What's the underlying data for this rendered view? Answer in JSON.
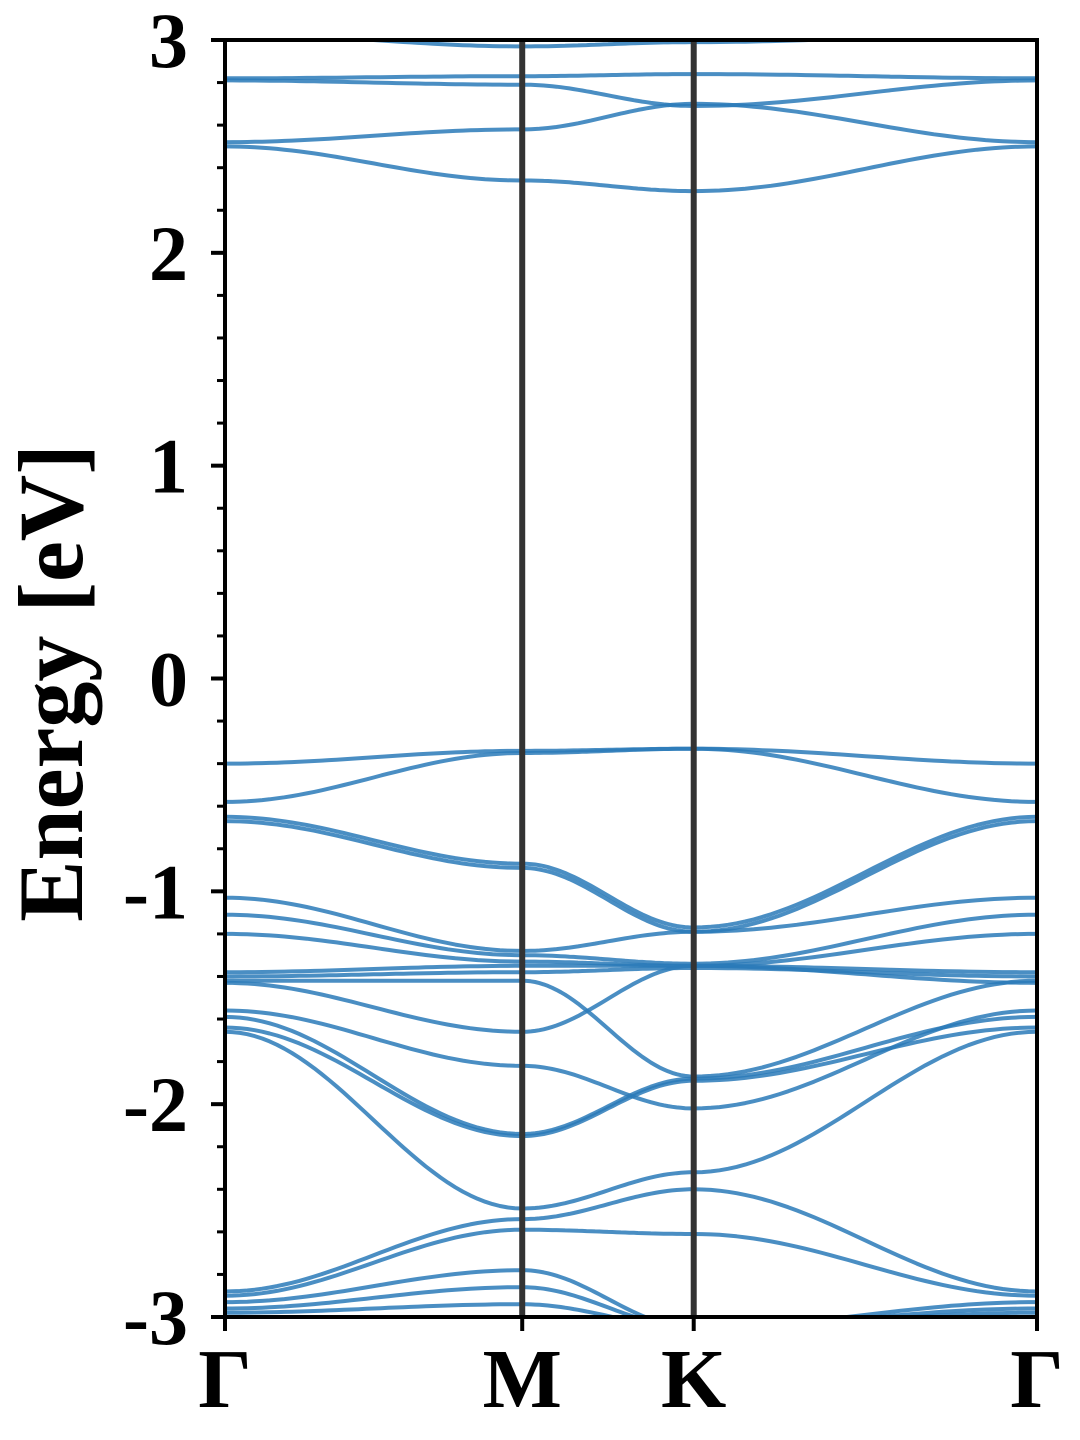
{
  "chart_data": {
    "type": "line",
    "title": "",
    "xlabel": "",
    "ylabel": "Energy [eV]",
    "ylim": [
      -3,
      3
    ],
    "yticks": [
      "3",
      "2",
      "1",
      "0",
      "-1",
      "-2",
      "-3"
    ],
    "ytick_values": [
      3,
      2,
      1,
      0,
      -1,
      -2,
      -3
    ],
    "minor_ytick_step": 0.2,
    "grid": false,
    "kpoints": [
      {
        "label": "Γ",
        "x": 0
      },
      {
        "label": "M",
        "x": 1
      },
      {
        "label": "K",
        "x": 1.577
      },
      {
        "label": "Γ",
        "x": 2.732
      }
    ],
    "line_color": "#2a7ab8",
    "kpoint_line_color": "#333333",
    "series": [
      {
        "x": [
          0,
          1,
          1.577,
          2.732
        ],
        "values": [
          3.03,
          2.97,
          2.99,
          3.03
        ]
      },
      {
        "x": [
          0,
          1,
          1.577,
          2.732
        ],
        "values": [
          2.82,
          2.83,
          2.84,
          2.82
        ]
      },
      {
        "x": [
          0,
          1,
          1.577,
          2.732
        ],
        "values": [
          2.81,
          2.79,
          2.69,
          2.81
        ]
      },
      {
        "x": [
          0,
          1,
          1.577,
          2.732
        ],
        "values": [
          2.52,
          2.58,
          2.7,
          2.52
        ]
      },
      {
        "x": [
          0,
          1,
          1.577,
          2.732
        ],
        "values": [
          2.5,
          2.34,
          2.29,
          2.5
        ]
      },
      {
        "x": [
          0,
          1,
          1.577,
          2.732
        ],
        "values": [
          -0.4,
          -0.34,
          -0.33,
          -0.4
        ]
      },
      {
        "x": [
          0,
          1,
          1.577,
          2.732
        ],
        "values": [
          -0.58,
          -0.35,
          -0.33,
          -0.58
        ]
      },
      {
        "x": [
          0,
          1,
          1.577,
          2.732
        ],
        "values": [
          -0.65,
          -0.87,
          -1.17,
          -0.65
        ]
      },
      {
        "x": [
          0,
          1,
          1.577,
          2.732
        ],
        "values": [
          -0.67,
          -0.89,
          -1.19,
          -0.67
        ]
      },
      {
        "x": [
          0,
          1,
          1.577,
          2.732
        ],
        "values": [
          -1.03,
          -1.28,
          -1.19,
          -1.03
        ]
      },
      {
        "x": [
          0,
          1,
          1.577,
          2.732
        ],
        "values": [
          -1.11,
          -1.3,
          -1.34,
          -1.11
        ]
      },
      {
        "x": [
          0,
          1,
          1.577,
          2.732
        ],
        "values": [
          -1.2,
          -1.33,
          -1.35,
          -1.2
        ]
      },
      {
        "x": [
          0,
          1,
          1.577,
          2.732
        ],
        "values": [
          -1.38,
          -1.35,
          -1.35,
          -1.38
        ]
      },
      {
        "x": [
          0,
          1,
          1.577,
          2.732
        ],
        "values": [
          -1.4,
          -1.38,
          -1.36,
          -1.4
        ]
      },
      {
        "x": [
          0,
          1,
          1.577,
          2.732
        ],
        "values": [
          -1.42,
          -1.42,
          -1.87,
          -1.42
        ]
      },
      {
        "x": [
          0,
          1,
          1.577,
          2.732
        ],
        "values": [
          -1.43,
          -1.66,
          -1.35,
          -1.43
        ]
      },
      {
        "x": [
          0,
          1,
          1.577,
          2.732
        ],
        "values": [
          -1.56,
          -1.82,
          -2.02,
          -1.56
        ]
      },
      {
        "x": [
          0,
          1,
          1.577,
          2.732
        ],
        "values": [
          -1.59,
          -2.14,
          -1.88,
          -1.59
        ]
      },
      {
        "x": [
          0,
          1,
          1.577,
          2.732
        ],
        "values": [
          -1.64,
          -2.15,
          -1.89,
          -1.64
        ]
      },
      {
        "x": [
          0,
          1,
          1.577,
          2.732
        ],
        "values": [
          -1.66,
          -2.49,
          -2.32,
          -1.66
        ]
      },
      {
        "x": [
          0,
          1,
          1.577,
          2.732
        ],
        "values": [
          -2.88,
          -2.54,
          -2.4,
          -2.88
        ]
      },
      {
        "x": [
          0,
          1,
          1.577,
          2.732
        ],
        "values": [
          -2.9,
          -2.59,
          -2.61,
          -2.9
        ]
      },
      {
        "x": [
          0,
          1,
          1.577,
          2.732
        ],
        "values": [
          -2.93,
          -2.78,
          -3.05,
          -2.93
        ]
      },
      {
        "x": [
          0,
          1,
          1.577,
          2.732
        ],
        "values": [
          -2.96,
          -2.86,
          -3.05,
          -2.96
        ]
      },
      {
        "x": [
          0,
          1,
          1.577,
          2.732
        ],
        "values": [
          -2.98,
          -2.94,
          -3.05,
          -2.98
        ]
      }
    ]
  }
}
